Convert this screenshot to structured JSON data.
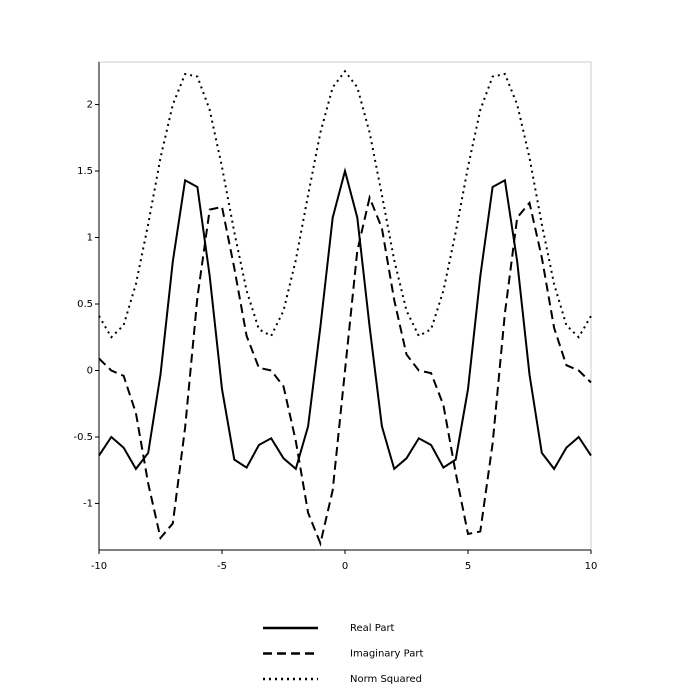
{
  "chart_data": {
    "type": "line",
    "x": [
      -10,
      -9.5,
      -9,
      -8.5,
      -8,
      -7.5,
      -7,
      -6.5,
      -6,
      -5.5,
      -5,
      -4.5,
      -4,
      -3.5,
      -3,
      -2.5,
      -2,
      -1.5,
      -1,
      -0.5,
      0,
      0.5,
      1,
      1.5,
      2,
      2.5,
      3,
      3.5,
      4,
      4.5,
      5,
      5.5,
      6,
      6.5,
      7,
      7.5,
      8,
      8.5,
      9,
      9.5,
      10
    ],
    "series": [
      {
        "name": "Real Part",
        "color": "#000000",
        "style": "solid",
        "values": [
          -0.64,
          -0.5,
          -0.58,
          -0.74,
          -0.62,
          -0.03,
          0.82,
          1.43,
          1.38,
          0.71,
          -0.14,
          -0.67,
          -0.73,
          -0.56,
          -0.51,
          -0.66,
          -0.74,
          -0.42,
          0.33,
          1.15,
          1.5,
          1.15,
          0.33,
          -0.42,
          -0.74,
          -0.66,
          -0.51,
          -0.56,
          -0.73,
          -0.67,
          -0.14,
          0.71,
          1.38,
          1.43,
          0.82,
          -0.03,
          -0.62,
          -0.74,
          -0.58,
          -0.5,
          -0.64
        ]
      },
      {
        "name": "Imaginary Part",
        "color": "#000000",
        "style": "dash",
        "values": [
          0.09,
          0,
          -0.04,
          -0.32,
          -0.85,
          -1.26,
          -1.15,
          -0.43,
          0.55,
          1.21,
          1.23,
          0.77,
          0.26,
          0.02,
          0,
          -0.12,
          -0.53,
          -1.07,
          -1.3,
          -0.9,
          0,
          0.9,
          1.3,
          1.07,
          0.53,
          0.12,
          0,
          -0.02,
          -0.26,
          -0.77,
          -1.23,
          -1.21,
          -0.55,
          0.43,
          1.15,
          1.26,
          0.85,
          0.32,
          0.04,
          0,
          -0.09
        ]
      },
      {
        "name": "Norm Squared",
        "color": "#000000",
        "style": "dot",
        "values": [
          0.41,
          0.25,
          0.34,
          0.65,
          1.1,
          1.6,
          2.0,
          2.23,
          2.21,
          1.96,
          1.53,
          1.04,
          0.6,
          0.31,
          0.26,
          0.45,
          0.83,
          1.32,
          1.79,
          2.13,
          2.25,
          2.13,
          1.79,
          1.32,
          0.83,
          0.45,
          0.26,
          0.31,
          0.6,
          1.04,
          1.53,
          1.96,
          2.21,
          2.23,
          2.0,
          1.6,
          1.1,
          0.65,
          0.34,
          0.25,
          0.41
        ]
      }
    ],
    "xlim": [
      -10,
      10
    ],
    "xticks": [
      -10,
      -5,
      0,
      5,
      10
    ],
    "ylim": [
      -1.35,
      2.32
    ],
    "yticks": [
      -1,
      -0.5,
      0,
      0.5,
      1,
      1.5,
      2
    ],
    "legend": "bottom"
  }
}
